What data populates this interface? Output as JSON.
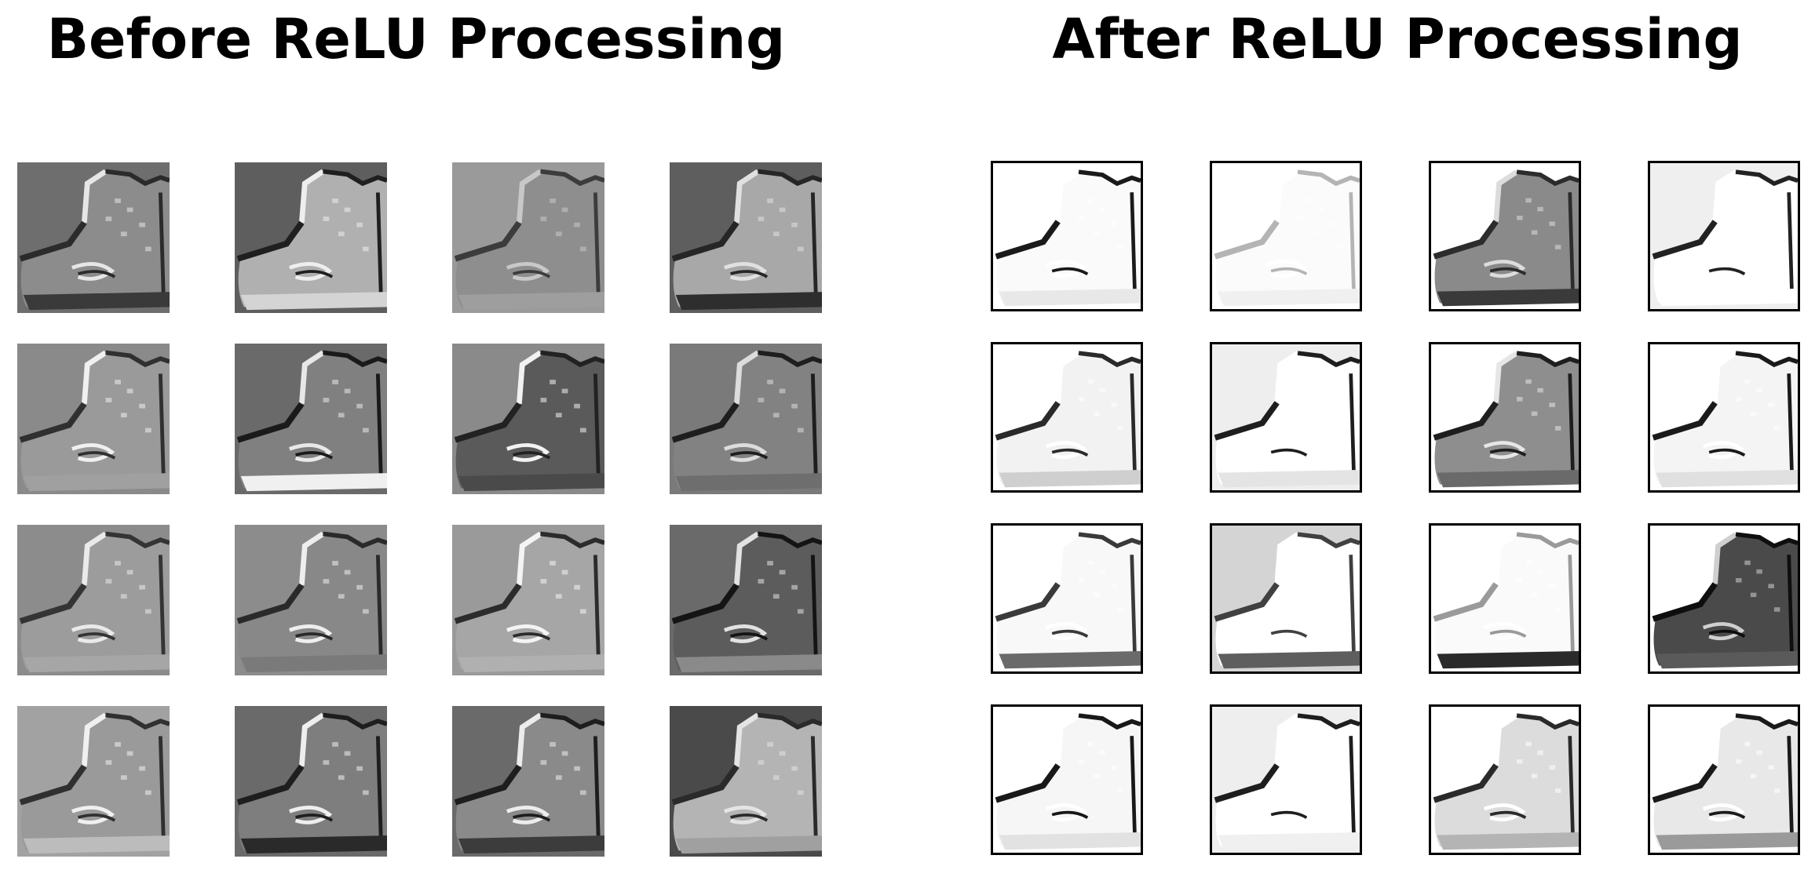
{
  "figure": {
    "before_title": "Before ReLU Processing",
    "after_title": "After ReLU Processing"
  },
  "panels": {
    "before": {
      "rows": 4,
      "cols": 4,
      "framed": false,
      "tiles": [
        {
          "bg": "#6e6e6e",
          "shoe": "#8c8c8c",
          "edge_light": "#e6e6e6",
          "edge_dark": "#2b2b2b",
          "sole": "#3a3a3a"
        },
        {
          "bg": "#5e5e5e",
          "shoe": "#b0b0b0",
          "edge_light": "#eeeeee",
          "edge_dark": "#1f1f1f",
          "sole": "#d4d4d4"
        },
        {
          "bg": "#9a9a9a",
          "shoe": "#8e8e8e",
          "edge_light": "#c8c8c8",
          "edge_dark": "#3c3c3c",
          "sole": "#9e9e9e"
        },
        {
          "bg": "#5e5e5e",
          "shoe": "#a8a8a8",
          "edge_light": "#e0e0e0",
          "edge_dark": "#262626",
          "sole": "#2e2e2e"
        },
        {
          "bg": "#8a8a8a",
          "shoe": "#9a9a9a",
          "edge_light": "#f0f0f0",
          "edge_dark": "#303030",
          "sole": "#a0a0a0"
        },
        {
          "bg": "#6a6a6a",
          "shoe": "#808080",
          "edge_light": "#e8e8e8",
          "edge_dark": "#1a1a1a",
          "sole": "#f0f0f0"
        },
        {
          "bg": "#8a8a8a",
          "shoe": "#5a5a5a",
          "edge_light": "#f2f2f2",
          "edge_dark": "#222222",
          "sole": "#4a4a4a"
        },
        {
          "bg": "#7a7a7a",
          "shoe": "#828282",
          "edge_light": "#dcdcdc",
          "edge_dark": "#1e1e1e",
          "sole": "#6e6e6e"
        },
        {
          "bg": "#8c8c8c",
          "shoe": "#9c9c9c",
          "edge_light": "#eaeaea",
          "edge_dark": "#343434",
          "sole": "#a6a6a6"
        },
        {
          "bg": "#8c8c8c",
          "shoe": "#888888",
          "edge_light": "#eeeeee",
          "edge_dark": "#2a2a2a",
          "sole": "#7a7a7a"
        },
        {
          "bg": "#9a9a9a",
          "shoe": "#a6a6a6",
          "edge_light": "#f4f4f4",
          "edge_dark": "#2c2c2c",
          "sole": "#b0b0b0"
        },
        {
          "bg": "#6a6a6a",
          "shoe": "#5c5c5c",
          "edge_light": "#e2e2e2",
          "edge_dark": "#141414",
          "sole": "#8a8a8a"
        },
        {
          "bg": "#a2a2a2",
          "shoe": "#9a9a9a",
          "edge_light": "#f0f0f0",
          "edge_dark": "#303030",
          "sole": "#bcbcbc"
        },
        {
          "bg": "#6a6a6a",
          "shoe": "#7e7e7e",
          "edge_light": "#eeeeee",
          "edge_dark": "#1e1e1e",
          "sole": "#2a2a2a"
        },
        {
          "bg": "#6a6a6a",
          "shoe": "#8a8a8a",
          "edge_light": "#ececec",
          "edge_dark": "#1e1e1e",
          "sole": "#3c3c3c"
        },
        {
          "bg": "#4a4a4a",
          "shoe": "#b4b4b4",
          "edge_light": "#e4e4e4",
          "edge_dark": "#2a2a2a",
          "sole": "#a0a0a0"
        }
      ]
    },
    "after": {
      "rows": 4,
      "cols": 4,
      "framed": true,
      "tiles": [
        {
          "bg": "#ffffff",
          "shoe": "#fafafa",
          "edge_light": "#ffffff",
          "edge_dark": "#1a1a1a",
          "sole": "#e8e8e8"
        },
        {
          "bg": "#ffffff",
          "shoe": "#fbfbfb",
          "edge_light": "#ffffff",
          "edge_dark": "#b4b4b4",
          "sole": "#f0f0f0"
        },
        {
          "bg": "#ffffff",
          "shoe": "#8a8a8a",
          "edge_light": "#dcdcdc",
          "edge_dark": "#2c2c2c",
          "sole": "#3a3a3a"
        },
        {
          "bg": "#efefef",
          "shoe": "#ffffff",
          "edge_light": "#ffffff",
          "edge_dark": "#222222",
          "sole": "#ffffff"
        },
        {
          "bg": "#ffffff",
          "shoe": "#f2f2f2",
          "edge_light": "#ffffff",
          "edge_dark": "#2a2a2a",
          "sole": "#cfcfcf"
        },
        {
          "bg": "#eeeeee",
          "shoe": "#ffffff",
          "edge_light": "#ffffff",
          "edge_dark": "#1e1e1e",
          "sole": "#e4e4e4"
        },
        {
          "bg": "#ffffff",
          "shoe": "#8e8e8e",
          "edge_light": "#e6e6e6",
          "edge_dark": "#1e1e1e",
          "sole": "#6a6a6a"
        },
        {
          "bg": "#ffffff",
          "shoe": "#f4f4f4",
          "edge_light": "#ffffff",
          "edge_dark": "#1a1a1a",
          "sole": "#e0e0e0"
        },
        {
          "bg": "#ffffff",
          "shoe": "#f8f8f8",
          "edge_light": "#ffffff",
          "edge_dark": "#3a3a3a",
          "sole": "#6a6a6a"
        },
        {
          "bg": "#d4d4d4",
          "shoe": "#ffffff",
          "edge_light": "#ffffff",
          "edge_dark": "#404040",
          "sole": "#5e5e5e"
        },
        {
          "bg": "#ffffff",
          "shoe": "#fafafa",
          "edge_light": "#ffffff",
          "edge_dark": "#9a9a9a",
          "sole": "#2a2a2a"
        },
        {
          "bg": "#ffffff",
          "shoe": "#4a4a4a",
          "edge_light": "#cfcfcf",
          "edge_dark": "#0e0e0e",
          "sole": "#5a5a5a"
        },
        {
          "bg": "#ffffff",
          "shoe": "#f6f6f6",
          "edge_light": "#ffffff",
          "edge_dark": "#181818",
          "sole": "#e2e2e2"
        },
        {
          "bg": "#eeeeee",
          "shoe": "#ffffff",
          "edge_light": "#ffffff",
          "edge_dark": "#1e1e1e",
          "sole": "#f0f0f0"
        },
        {
          "bg": "#ffffff",
          "shoe": "#dcdcdc",
          "edge_light": "#ffffff",
          "edge_dark": "#2a2a2a",
          "sole": "#b4b4b4"
        },
        {
          "bg": "#ffffff",
          "shoe": "#e8e8e8",
          "edge_light": "#ffffff",
          "edge_dark": "#1a1a1a",
          "sole": "#9a9a9a"
        }
      ]
    }
  }
}
